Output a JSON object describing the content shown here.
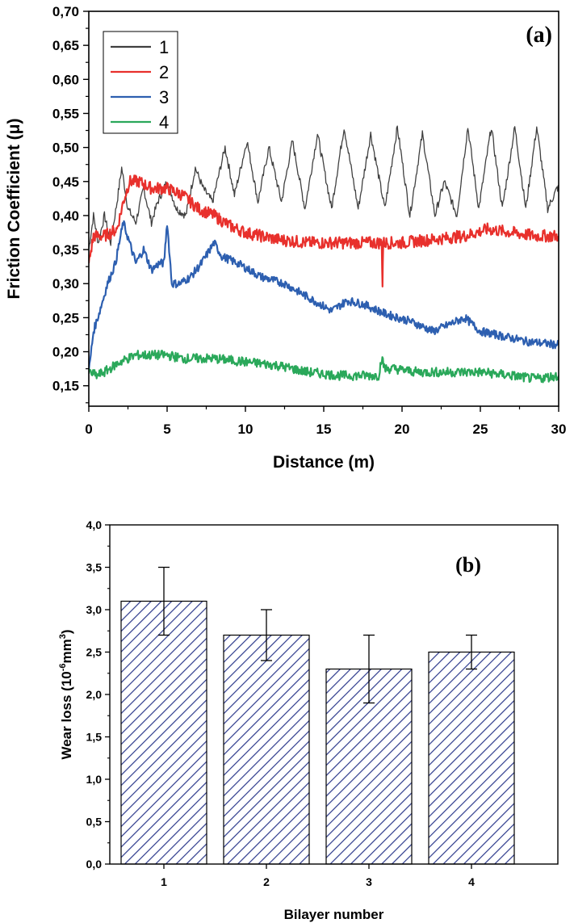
{
  "chart_data": [
    {
      "panel_label": "(a)",
      "type": "line",
      "xlabel": "Distance (m)",
      "ylabel": "Friction Coefficient (μ)",
      "xlim": [
        0,
        30
      ],
      "ylim": [
        0.12,
        0.7
      ],
      "x_ticks": [
        0,
        5,
        10,
        15,
        20,
        25,
        30
      ],
      "x_tick_labels": [
        "0",
        "5",
        "10",
        "15",
        "20",
        "25",
        "30"
      ],
      "y_ticks": [
        0.15,
        0.2,
        0.25,
        0.3,
        0.35,
        0.4,
        0.45,
        0.5,
        0.55,
        0.6,
        0.65,
        0.7
      ],
      "y_tick_labels": [
        "0,15",
        "0,20",
        "0,25",
        "0,30",
        "0,35",
        "0,40",
        "0,45",
        "0,50",
        "0,55",
        "0,60",
        "0,65",
        "0,70"
      ],
      "legend_position": "top-left",
      "series": [
        {
          "name": "1",
          "color": "#404040",
          "noise": 0.006,
          "x": [
            0,
            0.3,
            0.6,
            1.0,
            1.4,
            1.8,
            2.1,
            2.5,
            3.0,
            3.5,
            4.0,
            4.4,
            5.0,
            5.6,
            6.2,
            6.8,
            7.3,
            7.9,
            8.7,
            9.3,
            10.1,
            10.8,
            11.5,
            12.3,
            13.0,
            13.8,
            14.6,
            15.5,
            16.3,
            17.2,
            18.0,
            18.9,
            19.7,
            20.5,
            21.3,
            22.1,
            22.7,
            23.5,
            24.2,
            24.9,
            25.7,
            26.4,
            27.2,
            27.9,
            28.6,
            29.3,
            29.9,
            30.0
          ],
          "y": [
            0.35,
            0.4,
            0.36,
            0.4,
            0.36,
            0.42,
            0.47,
            0.41,
            0.39,
            0.44,
            0.39,
            0.42,
            0.45,
            0.41,
            0.4,
            0.47,
            0.44,
            0.42,
            0.5,
            0.43,
            0.51,
            0.42,
            0.5,
            0.42,
            0.51,
            0.41,
            0.52,
            0.41,
            0.53,
            0.41,
            0.52,
            0.41,
            0.53,
            0.4,
            0.52,
            0.4,
            0.45,
            0.4,
            0.53,
            0.41,
            0.53,
            0.41,
            0.53,
            0.41,
            0.53,
            0.41,
            0.44,
            0.44
          ]
        },
        {
          "name": "2",
          "color": "#e8302c",
          "noise": 0.009,
          "x": [
            0,
            0.3,
            1.0,
            1.8,
            2.2,
            2.6,
            3.2,
            4.0,
            5.0,
            6.0,
            7.0,
            8.0,
            9.0,
            10.0,
            12.0,
            14.0,
            16.0,
            18.0,
            18.7,
            18.75,
            18.8,
            19.0,
            20.0,
            22.0,
            24.0,
            25.5,
            27.0,
            28.5,
            30.0
          ],
          "y": [
            0.33,
            0.37,
            0.37,
            0.38,
            0.42,
            0.45,
            0.45,
            0.44,
            0.44,
            0.43,
            0.41,
            0.4,
            0.385,
            0.375,
            0.365,
            0.36,
            0.36,
            0.36,
            0.36,
            0.3,
            0.36,
            0.36,
            0.36,
            0.365,
            0.37,
            0.38,
            0.375,
            0.37,
            0.37
          ]
        },
        {
          "name": "3",
          "color": "#2d5fb0",
          "noise": 0.006,
          "x": [
            0,
            0.3,
            0.7,
            1.2,
            1.7,
            2.2,
            2.6,
            3.0,
            3.5,
            4.0,
            4.5,
            4.8,
            5.0,
            5.3,
            5.8,
            6.5,
            7.2,
            8.0,
            8.5,
            9.5,
            11.0,
            12.5,
            14.0,
            15.5,
            16.5,
            17.5,
            19.0,
            20.5,
            22.0,
            23.0,
            24.0,
            25.0,
            26.0,
            28.0,
            30.0
          ],
          "y": [
            0.17,
            0.23,
            0.26,
            0.3,
            0.33,
            0.39,
            0.36,
            0.33,
            0.35,
            0.32,
            0.33,
            0.33,
            0.39,
            0.3,
            0.3,
            0.31,
            0.33,
            0.36,
            0.34,
            0.33,
            0.31,
            0.3,
            0.28,
            0.26,
            0.275,
            0.27,
            0.255,
            0.245,
            0.23,
            0.24,
            0.25,
            0.23,
            0.225,
            0.215,
            0.21
          ]
        },
        {
          "name": "4",
          "color": "#2aa85a",
          "noise": 0.007,
          "x": [
            0,
            0.5,
            1.0,
            2.0,
            3.0,
            4.0,
            5.0,
            6.0,
            7.0,
            8.0,
            10.0,
            12.0,
            14.0,
            16.0,
            18.0,
            18.5,
            18.7,
            18.9,
            19.5,
            21.0,
            23.0,
            25.0,
            27.0,
            28.5,
            30.0
          ],
          "y": [
            0.17,
            0.165,
            0.17,
            0.185,
            0.195,
            0.195,
            0.195,
            0.19,
            0.19,
            0.19,
            0.185,
            0.18,
            0.17,
            0.165,
            0.165,
            0.165,
            0.19,
            0.175,
            0.175,
            0.17,
            0.17,
            0.17,
            0.165,
            0.16,
            0.165
          ]
        }
      ]
    },
    {
      "panel_label": "(b)",
      "type": "bar",
      "xlabel": "Bilayer number",
      "ylabel_main": "Wear loss (10",
      "ylabel_sup": "-6",
      "ylabel_mid": "mm",
      "ylabel_sup2": "3",
      "ylabel_end": ")",
      "ylim": [
        0,
        4.0
      ],
      "y_ticks": [
        0.0,
        0.5,
        1.0,
        1.5,
        2.0,
        2.5,
        3.0,
        3.5,
        4.0
      ],
      "y_tick_labels": [
        "0,0",
        "0,5",
        "1,0",
        "1,5",
        "2,0",
        "2,5",
        "3,0",
        "3,5",
        "4,0"
      ],
      "categories": [
        "1",
        "2",
        "3",
        "4"
      ],
      "values": [
        3.1,
        2.7,
        2.3,
        2.5
      ],
      "error_low": [
        2.7,
        2.4,
        1.9,
        2.3
      ],
      "error_high": [
        3.5,
        3.0,
        2.7,
        2.7
      ],
      "bar_fill": "hatched",
      "bar_color": "#2d3a8c"
    }
  ]
}
